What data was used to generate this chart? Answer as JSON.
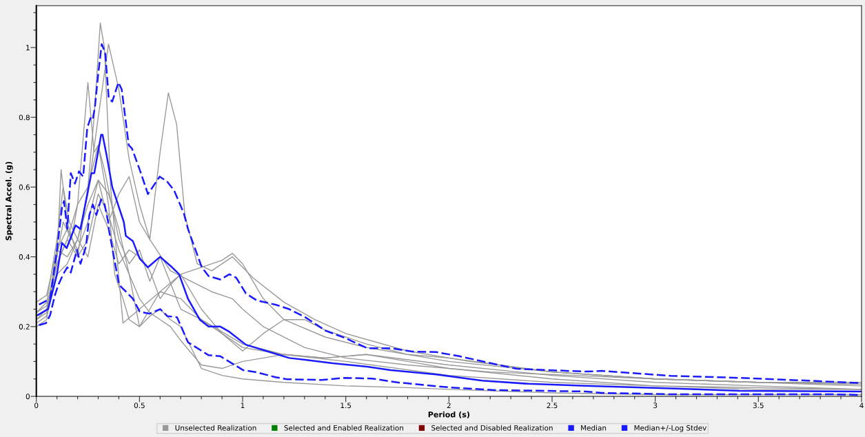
{
  "chart_data": {
    "type": "line",
    "xlabel": "Period (s)",
    "ylabel": "Spectral Accel. (g)",
    "xlim": [
      0,
      4
    ],
    "ylim": [
      0,
      1.12
    ],
    "xticks": [
      0,
      {
        "value": 0.1,
        "label": null
      },
      {
        "value": 0.2,
        "label": null
      },
      {
        "value": 0.3,
        "label": null
      },
      {
        "value": 0.4,
        "label": null
      },
      0.5,
      {
        "value": 0.6,
        "label": null
      },
      {
        "value": 0.7,
        "label": null
      },
      {
        "value": 0.8,
        "label": null
      },
      {
        "value": 0.9,
        "label": null
      },
      1,
      {
        "value": 1.1,
        "label": null
      },
      {
        "value": 1.2,
        "label": null
      },
      {
        "value": 1.3,
        "label": null
      },
      {
        "value": 1.4,
        "label": null
      },
      1.5,
      {
        "value": 1.6,
        "label": null
      },
      {
        "value": 1.7,
        "label": null
      },
      {
        "value": 1.8,
        "label": null
      },
      {
        "value": 1.9,
        "label": null
      },
      2,
      {
        "value": 2.1,
        "label": null
      },
      {
        "value": 2.2,
        "label": null
      },
      {
        "value": 2.3,
        "label": null
      },
      {
        "value": 2.4,
        "label": null
      },
      2.5,
      {
        "value": 2.6,
        "label": null
      },
      {
        "value": 2.7,
        "label": null
      },
      {
        "value": 2.8,
        "label": null
      },
      {
        "value": 2.9,
        "label": null
      },
      3,
      {
        "value": 3.1,
        "label": null
      },
      {
        "value": 3.2,
        "label": null
      },
      {
        "value": 3.3,
        "label": null
      },
      {
        "value": 3.4,
        "label": null
      },
      3.5,
      {
        "value": 3.6,
        "label": null
      },
      {
        "value": 3.7,
        "label": null
      },
      {
        "value": 3.8,
        "label": null
      },
      {
        "value": 3.9,
        "label": null
      },
      4
    ],
    "yticks": [
      0,
      {
        "value": 0.05,
        "label": null
      },
      {
        "value": 0.1,
        "label": null
      },
      {
        "value": 0.15,
        "label": null
      },
      0.2,
      {
        "value": 0.25,
        "label": null
      },
      {
        "value": 0.3,
        "label": null
      },
      {
        "value": 0.35,
        "label": null
      },
      0.4,
      {
        "value": 0.45,
        "label": null
      },
      {
        "value": 0.5,
        "label": null
      },
      {
        "value": 0.55,
        "label": null
      },
      0.6,
      {
        "value": 0.65,
        "label": null
      },
      {
        "value": 0.7,
        "label": null
      },
      {
        "value": 0.75,
        "label": null
      },
      0.8,
      {
        "value": 0.85,
        "label": null
      },
      {
        "value": 0.9,
        "label": null
      },
      {
        "value": 0.95,
        "label": null
      },
      1,
      {
        "value": 1.05,
        "label": null
      },
      {
        "value": 1.1,
        "label": null
      }
    ],
    "legend": "bottom",
    "series": [
      {
        "name": "Unselected Realization",
        "color": "#999999",
        "line_style": "solid",
        "x": [
          0,
          0.05,
          0.1,
          0.13,
          0.17,
          0.2,
          0.25,
          0.28,
          0.31,
          0.33,
          0.36,
          0.42,
          0.5,
          0.6,
          0.7,
          0.8,
          1.0,
          1.2,
          1.5,
          2.0,
          2.5,
          3.0,
          3.5,
          4.0
        ],
        "values": [
          0.22,
          0.25,
          0.4,
          0.5,
          0.45,
          0.55,
          0.6,
          0.8,
          1.07,
          1.0,
          0.6,
          0.21,
          0.25,
          0.3,
          0.28,
          0.22,
          0.15,
          0.12,
          0.1,
          0.06,
          0.04,
          0.03,
          0.02,
          0.02
        ]
      },
      {
        "color": "#999999",
        "line_style": "solid",
        "x": [
          0,
          0.05,
          0.1,
          0.15,
          0.2,
          0.25,
          0.3,
          0.35,
          0.4,
          0.45,
          0.5,
          0.55,
          0.65,
          0.75,
          0.85,
          0.95,
          1.0,
          1.1,
          1.3,
          1.5,
          1.8,
          2.2,
          2.6,
          3,
          3.5,
          4
        ],
        "values": [
          0.27,
          0.29,
          0.42,
          0.4,
          0.45,
          0.58,
          0.8,
          1.01,
          0.88,
          0.68,
          0.55,
          0.45,
          0.36,
          0.33,
          0.3,
          0.28,
          0.25,
          0.2,
          0.14,
          0.11,
          0.09,
          0.07,
          0.06,
          0.05,
          0.04,
          0.035
        ]
      },
      {
        "color": "#999999",
        "line_style": "solid",
        "x": [
          0,
          0.05,
          0.1,
          0.13,
          0.16,
          0.2,
          0.25,
          0.3,
          0.35,
          0.4,
          0.45,
          0.5,
          0.55,
          0.6,
          0.64,
          0.68,
          0.72,
          0.78,
          0.85,
          0.95,
          1.05,
          1.2,
          1.35,
          1.5,
          1.8,
          2.1,
          2.5,
          3,
          3.5,
          4
        ],
        "values": [
          0.24,
          0.27,
          0.45,
          0.6,
          0.5,
          0.45,
          0.55,
          0.62,
          0.5,
          0.58,
          0.63,
          0.5,
          0.45,
          0.7,
          0.87,
          0.78,
          0.52,
          0.38,
          0.36,
          0.4,
          0.34,
          0.27,
          0.22,
          0.18,
          0.13,
          0.1,
          0.07,
          0.05,
          0.04,
          0.04
        ]
      },
      {
        "color": "#999999",
        "line_style": "solid",
        "x": [
          0,
          0.05,
          0.1,
          0.15,
          0.2,
          0.25,
          0.28,
          0.3,
          0.33,
          0.4,
          0.45,
          0.5,
          0.55,
          0.6,
          0.7,
          0.8,
          0.9,
          1.0,
          1.2,
          1.4,
          1.6,
          2,
          2.5,
          3,
          3.5,
          4
        ],
        "values": [
          0.21,
          0.23,
          0.38,
          0.45,
          0.55,
          0.9,
          0.7,
          0.72,
          0.65,
          0.45,
          0.38,
          0.42,
          0.33,
          0.4,
          0.25,
          0.22,
          0.18,
          0.14,
          0.12,
          0.11,
          0.12,
          0.09,
          0.06,
          0.04,
          0.03,
          0.02
        ]
      },
      {
        "color": "#999999",
        "line_style": "solid",
        "x": [
          0,
          0.05,
          0.1,
          0.12,
          0.15,
          0.2,
          0.25,
          0.3,
          0.35,
          0.38,
          0.42,
          0.45,
          0.5,
          0.55,
          0.6,
          0.65,
          0.7,
          0.75,
          0.8,
          0.9,
          1,
          1.2,
          1.5,
          1.8,
          2,
          2.5,
          3,
          3.5,
          4
        ],
        "values": [
          0.2,
          0.22,
          0.4,
          0.65,
          0.5,
          0.4,
          0.6,
          0.72,
          0.55,
          0.35,
          0.28,
          0.22,
          0.2,
          0.23,
          0.25,
          0.22,
          0.2,
          0.14,
          0.08,
          0.06,
          0.05,
          0.04,
          0.03,
          0.025,
          0.02,
          0.01,
          0.005,
          0.005,
          0.005
        ]
      },
      {
        "color": "#999999",
        "line_style": "solid",
        "x": [
          0,
          0.05,
          0.1,
          0.15,
          0.2,
          0.25,
          0.3,
          0.35,
          0.4,
          0.45,
          0.5,
          0.55,
          0.6,
          0.65,
          0.7,
          0.8,
          0.9,
          1.0,
          1.1,
          1.2,
          1.3,
          1.4,
          1.6,
          1.8,
          2.0,
          2.5,
          3,
          3.5,
          4
        ],
        "values": [
          0.23,
          0.25,
          0.35,
          0.38,
          0.45,
          0.4,
          0.55,
          0.48,
          0.38,
          0.42,
          0.4,
          0.36,
          0.28,
          0.32,
          0.35,
          0.25,
          0.18,
          0.13,
          0.18,
          0.22,
          0.22,
          0.19,
          0.15,
          0.12,
          0.11,
          0.07,
          0.05,
          0.04,
          0.03
        ]
      },
      {
        "color": "#999999",
        "line_style": "solid",
        "x": [
          0,
          0.05,
          0.1,
          0.15,
          0.2,
          0.25,
          0.3,
          0.35,
          0.4,
          0.45,
          0.5,
          0.55,
          0.6,
          0.7,
          0.8,
          0.9,
          0.95,
          1.0,
          1.1,
          1.2,
          1.4,
          1.6,
          1.8,
          2,
          2.5,
          3,
          3.5,
          4
        ],
        "values": [
          0.22,
          0.24,
          0.42,
          0.48,
          0.42,
          0.5,
          0.62,
          0.58,
          0.48,
          0.35,
          0.2,
          0.25,
          0.3,
          0.35,
          0.37,
          0.39,
          0.41,
          0.38,
          0.28,
          0.22,
          0.17,
          0.14,
          0.12,
          0.1,
          0.07,
          0.05,
          0.04,
          0.035
        ]
      },
      {
        "color": "#999999",
        "line_style": "solid",
        "x": [
          0,
          0.05,
          0.1,
          0.15,
          0.2,
          0.25,
          0.3,
          0.35,
          0.4,
          0.45,
          0.5,
          0.55,
          0.6,
          0.65,
          0.7,
          0.8,
          0.9,
          1.0,
          1.1,
          1.2,
          1.4,
          1.6,
          1.8,
          2,
          2.5,
          3,
          3.5,
          4
        ],
        "values": [
          0.24,
          0.26,
          0.38,
          0.45,
          0.4,
          0.45,
          0.58,
          0.52,
          0.42,
          0.35,
          0.28,
          0.24,
          0.22,
          0.2,
          0.16,
          0.09,
          0.08,
          0.1,
          0.11,
          0.12,
          0.11,
          0.12,
          0.1,
          0.08,
          0.05,
          0.03,
          0.025,
          0.02
        ]
      },
      {
        "name": "Selected and Enabled Realization",
        "color": "#008000"
      },
      {
        "name": "Selected and Disabled Realization",
        "color": "#800000"
      },
      {
        "name": "Median",
        "color": "#1a1aff",
        "line_style": "solid",
        "x": [
          0.007,
          0.057,
          0.1,
          0.124,
          0.147,
          0.19,
          0.214,
          0.267,
          0.281,
          0.314,
          0.321,
          0.341,
          0.368,
          0.424,
          0.434,
          0.468,
          0.501,
          0.541,
          0.6,
          0.658,
          0.692,
          0.735,
          0.792,
          0.835,
          0.892,
          0.936,
          1.016,
          1.126,
          1.226,
          1.303,
          1.437,
          1.604,
          1.718,
          1.938,
          2.162,
          2.386,
          2.663,
          3.021,
          3.409,
          4.0
        ],
        "values": [
          0.233,
          0.25,
          0.35,
          0.44,
          0.425,
          0.49,
          0.48,
          0.64,
          0.64,
          0.75,
          0.75,
          0.69,
          0.6,
          0.5,
          0.46,
          0.445,
          0.395,
          0.37,
          0.4,
          0.37,
          0.35,
          0.28,
          0.22,
          0.2,
          0.2,
          0.185,
          0.148,
          0.128,
          0.11,
          0.105,
          0.095,
          0.085,
          0.075,
          0.063,
          0.045,
          0.036,
          0.03,
          0.024,
          0.016,
          0.014
        ]
      },
      {
        "name": "Median+/-Log Stdev",
        "color": "#1a1aff",
        "line_style": "dashed",
        "x": [
          0.013,
          0.067,
          0.1,
          0.124,
          0.134,
          0.15,
          0.167,
          0.187,
          0.207,
          0.227,
          0.247,
          0.264,
          0.274,
          0.284,
          0.301,
          0.317,
          0.334,
          0.351,
          0.368,
          0.398,
          0.414,
          0.448,
          0.464,
          0.501,
          0.541,
          0.598,
          0.635,
          0.668,
          0.715,
          0.735,
          0.802,
          0.835,
          0.892,
          0.936,
          0.969,
          1.016,
          1.069,
          1.159,
          1.226,
          1.303,
          1.403,
          1.494,
          1.604,
          1.718,
          1.828,
          1.938,
          2.051,
          2.219,
          2.329,
          2.663,
          2.74,
          3.074,
          3.409,
          3.743,
          4.0
        ],
        "values": [
          0.263,
          0.28,
          0.42,
          0.54,
          0.56,
          0.48,
          0.64,
          0.61,
          0.645,
          0.63,
          0.77,
          0.8,
          0.795,
          0.83,
          0.93,
          1.01,
          0.985,
          0.855,
          0.845,
          0.9,
          0.88,
          0.72,
          0.71,
          0.65,
          0.58,
          0.63,
          0.615,
          0.59,
          0.525,
          0.48,
          0.37,
          0.345,
          0.335,
          0.35,
          0.34,
          0.295,
          0.275,
          0.263,
          0.25,
          0.227,
          0.188,
          0.168,
          0.138,
          0.138,
          0.128,
          0.127,
          0.115,
          0.093,
          0.079,
          0.071,
          0.073,
          0.059,
          0.053,
          0.045,
          0.038
        ]
      },
      {
        "color": "#1a1aff",
        "line_style": "dashed",
        "x": [
          0.013,
          0.047,
          0.067,
          0.09,
          0.107,
          0.13,
          0.15,
          0.167,
          0.197,
          0.214,
          0.241,
          0.257,
          0.274,
          0.291,
          0.314,
          0.331,
          0.348,
          0.351,
          0.401,
          0.468,
          0.501,
          0.548,
          0.601,
          0.635,
          0.682,
          0.735,
          0.835,
          0.892,
          1.003,
          1.069,
          1.159,
          1.216,
          1.384,
          1.494,
          1.627,
          1.75,
          1.995,
          2.219,
          2.663,
          2.74,
          3.074,
          3.856,
          4.0
        ],
        "values": [
          0.204,
          0.21,
          0.233,
          0.29,
          0.32,
          0.35,
          0.37,
          0.355,
          0.42,
          0.38,
          0.43,
          0.52,
          0.55,
          0.52,
          0.565,
          0.55,
          0.5,
          0.48,
          0.32,
          0.28,
          0.243,
          0.237,
          0.25,
          0.23,
          0.227,
          0.155,
          0.118,
          0.115,
          0.075,
          0.069,
          0.055,
          0.049,
          0.047,
          0.053,
          0.051,
          0.04,
          0.026,
          0.018,
          0.014,
          0.01,
          0.006,
          0.006,
          0.004
        ]
      }
    ]
  }
}
